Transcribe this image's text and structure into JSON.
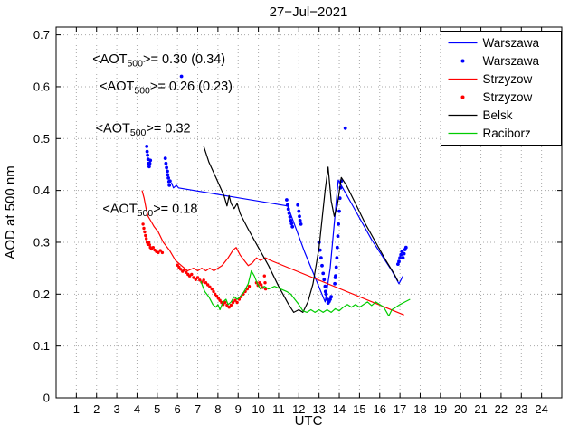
{
  "chart_data": {
    "type": "line",
    "title": "27−Jul−2021",
    "xlabel": "UTC",
    "ylabel": "AOD at 500 nm",
    "xlim": [
      0,
      25
    ],
    "ylim": [
      0,
      0.715
    ],
    "xticks": [
      1,
      2,
      3,
      4,
      5,
      6,
      7,
      8,
      9,
      10,
      11,
      12,
      13,
      14,
      15,
      16,
      17,
      18,
      19,
      20,
      21,
      22,
      23,
      24
    ],
    "yticks": [
      0,
      0.1,
      0.2,
      0.3,
      0.4,
      0.5,
      0.6,
      0.7
    ],
    "grid": true,
    "legend_position": "top-right",
    "series": [
      {
        "name": "Warszawa",
        "type": "line",
        "color": "#0000ff",
        "points": [
          [
            5.7,
            0.415
          ],
          [
            5.8,
            0.405
          ],
          [
            5.95,
            0.41
          ],
          [
            6.05,
            0.405
          ],
          [
            11.45,
            0.37
          ],
          [
            12.3,
            0.28
          ],
          [
            13.3,
            0.185
          ],
          [
            13.55,
            0.25
          ],
          [
            13.95,
            0.42
          ],
          [
            14.6,
            0.375
          ],
          [
            15.6,
            0.305
          ],
          [
            16.6,
            0.245
          ],
          [
            16.95,
            0.22
          ],
          [
            17.15,
            0.235
          ]
        ]
      },
      {
        "name": "Warszawa",
        "type": "scatter",
        "color": "#0000ff",
        "marker": "dot",
        "marker_size": 1.9,
        "points": [
          [
            4.48,
            0.485
          ],
          [
            4.5,
            0.475
          ],
          [
            4.52,
            0.468
          ],
          [
            4.55,
            0.46
          ],
          [
            4.57,
            0.452
          ],
          [
            4.6,
            0.446
          ],
          [
            4.63,
            0.452
          ],
          [
            4.66,
            0.458
          ],
          [
            5.4,
            0.462
          ],
          [
            5.43,
            0.452
          ],
          [
            5.46,
            0.444
          ],
          [
            5.5,
            0.437
          ],
          [
            5.52,
            0.43
          ],
          [
            5.55,
            0.424
          ],
          [
            5.58,
            0.417
          ],
          [
            5.6,
            0.41
          ],
          [
            5.63,
            0.418
          ],
          [
            6.2,
            0.62
          ],
          [
            11.4,
            0.382
          ],
          [
            11.44,
            0.372
          ],
          [
            11.48,
            0.364
          ],
          [
            11.52,
            0.356
          ],
          [
            11.56,
            0.349
          ],
          [
            11.6,
            0.342
          ],
          [
            11.64,
            0.336
          ],
          [
            11.68,
            0.33
          ],
          [
            11.95,
            0.372
          ],
          [
            12.0,
            0.36
          ],
          [
            12.03,
            0.35
          ],
          [
            12.06,
            0.342
          ],
          [
            12.1,
            0.335
          ],
          [
            13.0,
            0.3
          ],
          [
            13.05,
            0.285
          ],
          [
            13.1,
            0.27
          ],
          [
            13.15,
            0.255
          ],
          [
            13.2,
            0.24
          ],
          [
            13.25,
            0.228
          ],
          [
            13.3,
            0.215
          ],
          [
            13.32,
            0.205
          ],
          [
            13.35,
            0.2
          ],
          [
            13.4,
            0.19
          ],
          [
            13.45,
            0.183
          ],
          [
            13.5,
            0.186
          ],
          [
            13.55,
            0.19
          ],
          [
            13.6,
            0.195
          ],
          [
            13.78,
            0.22
          ],
          [
            13.8,
            0.232
          ],
          [
            13.82,
            0.235
          ],
          [
            13.85,
            0.252
          ],
          [
            13.88,
            0.27
          ],
          [
            13.9,
            0.29
          ],
          [
            13.93,
            0.312
          ],
          [
            13.96,
            0.335
          ],
          [
            14.0,
            0.36
          ],
          [
            14.03,
            0.385
          ],
          [
            14.06,
            0.405
          ],
          [
            14.1,
            0.418
          ],
          [
            14.3,
            0.52
          ],
          [
            16.9,
            0.258
          ],
          [
            16.95,
            0.263
          ],
          [
            17.0,
            0.27
          ],
          [
            17.05,
            0.276
          ],
          [
            17.1,
            0.282
          ],
          [
            17.15,
            0.27
          ],
          [
            17.2,
            0.278
          ],
          [
            17.25,
            0.286
          ],
          [
            17.3,
            0.29
          ]
        ]
      },
      {
        "name": "Strzyzow",
        "type": "line",
        "color": "#ff0000",
        "points": [
          [
            4.25,
            0.4
          ],
          [
            4.35,
            0.385
          ],
          [
            4.45,
            0.365
          ],
          [
            4.55,
            0.35
          ],
          [
            4.7,
            0.34
          ],
          [
            4.85,
            0.33
          ],
          [
            5.05,
            0.32
          ],
          [
            5.3,
            0.3
          ],
          [
            5.6,
            0.285
          ],
          [
            5.9,
            0.265
          ],
          [
            6.2,
            0.255
          ],
          [
            6.5,
            0.245
          ],
          [
            6.8,
            0.25
          ],
          [
            7.0,
            0.245
          ],
          [
            7.2,
            0.25
          ],
          [
            7.4,
            0.245
          ],
          [
            7.6,
            0.25
          ],
          [
            7.8,
            0.245
          ],
          [
            8.0,
            0.25
          ],
          [
            8.2,
            0.255
          ],
          [
            8.5,
            0.27
          ],
          [
            8.75,
            0.285
          ],
          [
            8.9,
            0.29
          ],
          [
            9.1,
            0.275
          ],
          [
            9.3,
            0.265
          ],
          [
            9.5,
            0.255
          ],
          [
            9.7,
            0.26
          ],
          [
            9.9,
            0.27
          ],
          [
            10.1,
            0.265
          ],
          [
            10.35,
            0.27
          ],
          [
            10.6,
            0.265
          ],
          [
            17.2,
            0.16
          ]
        ]
      },
      {
        "name": "Strzyzow",
        "type": "scatter",
        "color": "#ff0000",
        "marker": "dot",
        "marker_size": 1.7,
        "points": [
          [
            4.3,
            0.335
          ],
          [
            4.34,
            0.327
          ],
          [
            4.38,
            0.32
          ],
          [
            4.42,
            0.313
          ],
          [
            4.46,
            0.307
          ],
          [
            4.5,
            0.3
          ],
          [
            4.54,
            0.296
          ],
          [
            4.58,
            0.3
          ],
          [
            4.62,
            0.295
          ],
          [
            4.66,
            0.29
          ],
          [
            4.72,
            0.287
          ],
          [
            4.8,
            0.29
          ],
          [
            4.88,
            0.285
          ],
          [
            4.96,
            0.282
          ],
          [
            5.05,
            0.28
          ],
          [
            5.15,
            0.284
          ],
          [
            5.25,
            0.28
          ],
          [
            6.0,
            0.256
          ],
          [
            6.08,
            0.252
          ],
          [
            6.16,
            0.248
          ],
          [
            6.25,
            0.244
          ],
          [
            6.34,
            0.247
          ],
          [
            6.43,
            0.242
          ],
          [
            6.52,
            0.238
          ],
          [
            6.6,
            0.235
          ],
          [
            6.7,
            0.238
          ],
          [
            6.8,
            0.232
          ],
          [
            6.9,
            0.228
          ],
          [
            7.0,
            0.232
          ],
          [
            7.1,
            0.227
          ],
          [
            7.2,
            0.223
          ],
          [
            7.3,
            0.227
          ],
          [
            7.4,
            0.222
          ],
          [
            7.5,
            0.218
          ],
          [
            7.6,
            0.214
          ],
          [
            7.7,
            0.21
          ],
          [
            7.78,
            0.205
          ],
          [
            7.86,
            0.2
          ],
          [
            7.94,
            0.196
          ],
          [
            8.02,
            0.192
          ],
          [
            8.1,
            0.188
          ],
          [
            8.18,
            0.184
          ],
          [
            8.26,
            0.18
          ],
          [
            8.35,
            0.184
          ],
          [
            8.45,
            0.179
          ],
          [
            8.55,
            0.175
          ],
          [
            8.65,
            0.179
          ],
          [
            8.75,
            0.184
          ],
          [
            8.85,
            0.188
          ],
          [
            8.95,
            0.184
          ],
          [
            9.05,
            0.19
          ],
          [
            9.15,
            0.195
          ],
          [
            9.25,
            0.2
          ],
          [
            9.35,
            0.205
          ],
          [
            9.45,
            0.21
          ],
          [
            9.55,
            0.215
          ],
          [
            9.9,
            0.222
          ],
          [
            9.98,
            0.217
          ],
          [
            10.06,
            0.222
          ],
          [
            10.14,
            0.218
          ],
          [
            10.22,
            0.213
          ],
          [
            10.3,
            0.235
          ],
          [
            10.33,
            0.222
          ],
          [
            10.36,
            0.21
          ]
        ]
      },
      {
        "name": "Belsk",
        "type": "line",
        "color": "#000000",
        "points": [
          [
            7.3,
            0.485
          ],
          [
            7.55,
            0.455
          ],
          [
            7.9,
            0.425
          ],
          [
            8.3,
            0.39
          ],
          [
            8.45,
            0.37
          ],
          [
            8.55,
            0.39
          ],
          [
            8.65,
            0.375
          ],
          [
            8.8,
            0.365
          ],
          [
            8.95,
            0.375
          ],
          [
            9.1,
            0.355
          ],
          [
            9.5,
            0.325
          ],
          [
            10.0,
            0.29
          ],
          [
            10.5,
            0.255
          ],
          [
            11.0,
            0.215
          ],
          [
            11.5,
            0.18
          ],
          [
            11.75,
            0.165
          ],
          [
            12.0,
            0.17
          ],
          [
            12.2,
            0.165
          ],
          [
            12.45,
            0.185
          ],
          [
            12.7,
            0.22
          ],
          [
            13.0,
            0.29
          ],
          [
            13.3,
            0.4
          ],
          [
            13.45,
            0.445
          ],
          [
            13.6,
            0.38
          ],
          [
            13.75,
            0.35
          ],
          [
            13.9,
            0.37
          ],
          [
            14.1,
            0.425
          ],
          [
            14.35,
            0.41
          ],
          [
            14.8,
            0.375
          ],
          [
            15.3,
            0.335
          ],
          [
            15.8,
            0.3
          ],
          [
            16.3,
            0.265
          ],
          [
            16.7,
            0.24
          ],
          [
            16.9,
            0.225
          ]
        ]
      },
      {
        "name": "Raciborz",
        "type": "line",
        "color": "#00cc00",
        "points": [
          [
            7.15,
            0.225
          ],
          [
            7.35,
            0.205
          ],
          [
            7.55,
            0.195
          ],
          [
            7.75,
            0.18
          ],
          [
            7.9,
            0.175
          ],
          [
            8.0,
            0.18
          ],
          [
            8.1,
            0.17
          ],
          [
            8.25,
            0.185
          ],
          [
            8.4,
            0.19
          ],
          [
            8.5,
            0.18
          ],
          [
            8.65,
            0.185
          ],
          [
            8.8,
            0.195
          ],
          [
            8.95,
            0.19
          ],
          [
            9.1,
            0.195
          ],
          [
            9.3,
            0.205
          ],
          [
            9.5,
            0.22
          ],
          [
            9.65,
            0.245
          ],
          [
            9.8,
            0.235
          ],
          [
            9.95,
            0.22
          ],
          [
            10.1,
            0.21
          ],
          [
            10.3,
            0.215
          ],
          [
            10.5,
            0.21
          ],
          [
            10.8,
            0.215
          ],
          [
            11.1,
            0.21
          ],
          [
            11.4,
            0.205
          ],
          [
            11.6,
            0.2
          ],
          [
            11.8,
            0.19
          ],
          [
            12.0,
            0.18
          ],
          [
            12.2,
            0.168
          ],
          [
            12.4,
            0.165
          ],
          [
            12.6,
            0.17
          ],
          [
            12.8,
            0.165
          ],
          [
            13.0,
            0.17
          ],
          [
            13.2,
            0.165
          ],
          [
            13.4,
            0.17
          ],
          [
            13.6,
            0.165
          ],
          [
            13.8,
            0.172
          ],
          [
            14.0,
            0.168
          ],
          [
            14.2,
            0.175
          ],
          [
            14.4,
            0.18
          ],
          [
            14.6,
            0.175
          ],
          [
            14.8,
            0.18
          ],
          [
            15.0,
            0.175
          ],
          [
            15.2,
            0.18
          ],
          [
            15.4,
            0.185
          ],
          [
            15.6,
            0.178
          ],
          [
            15.8,
            0.185
          ],
          [
            16.0,
            0.18
          ],
          [
            16.2,
            0.175
          ],
          [
            16.45,
            0.158
          ],
          [
            16.6,
            0.17
          ],
          [
            16.8,
            0.175
          ],
          [
            17.0,
            0.18
          ],
          [
            17.25,
            0.185
          ],
          [
            17.5,
            0.19
          ]
        ]
      }
    ],
    "annotations": [
      {
        "prefix": "<AOT",
        "sub": "500",
        "suffix": ">= 0.30 (0.34)",
        "color": "#0000ff",
        "x": 1.8,
        "y": 0.645
      },
      {
        "prefix": "<AOT",
        "sub": "500",
        "suffix": ">= 0.26 (0.23)",
        "color": "#ff0000",
        "x": 2.15,
        "y": 0.593
      },
      {
        "prefix": "<AOT",
        "sub": "500",
        "suffix": ">= 0.32",
        "color": "#000000",
        "x": 1.95,
        "y": 0.512
      },
      {
        "prefix": "<AOT",
        "sub": "500",
        "suffix": ">= 0.18",
        "color": "#00cc00",
        "x": 2.3,
        "y": 0.357
      }
    ],
    "legend": [
      "Warszawa",
      "Warszawa",
      "Strzyzow",
      "Strzyzow",
      "Belsk",
      "Raciborz"
    ]
  }
}
